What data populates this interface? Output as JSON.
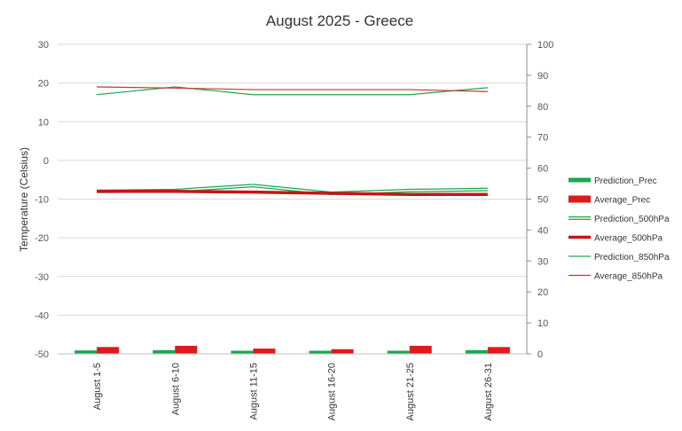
{
  "chart_data": {
    "type": "bar",
    "title": "August 2025 - Greece",
    "ylabel": "Temperature (Celsius)",
    "y2label": "",
    "categories": [
      "August 1-5",
      "August 6-10",
      "August 11-15",
      "August 16-20",
      "August 21-25",
      "August 26-31"
    ],
    "ylim": [
      -50,
      30
    ],
    "yticks": [
      -50,
      -40,
      -30,
      -20,
      -10,
      0,
      10,
      20,
      30
    ],
    "y2lim": [
      0,
      100
    ],
    "y2ticks": [
      0,
      10,
      20,
      30,
      40,
      50,
      60,
      70,
      80,
      90,
      100
    ],
    "grid": true,
    "legend_position": "right",
    "series": [
      {
        "name": "Prediction_Prec",
        "kind": "bar",
        "axis": "right",
        "color": "#1aa650",
        "values": [
          1.1,
          1.2,
          1.0,
          1.0,
          1.0,
          1.2
        ]
      },
      {
        "name": "Average_Prec",
        "kind": "bar",
        "axis": "right",
        "color": "#e01a1a",
        "values": [
          2.2,
          2.6,
          1.7,
          1.5,
          2.6,
          2.2
        ]
      },
      {
        "name": "Prediction_500hPa",
        "kind": "line",
        "style": "double",
        "axis": "left",
        "color": "#1aa650",
        "values": [
          -8.0,
          -7.8,
          -6.5,
          -8.5,
          -7.8,
          -7.5
        ]
      },
      {
        "name": "Average_500hPa",
        "kind": "line",
        "style": "thick",
        "axis": "left",
        "color": "#c81414",
        "values": [
          -8.0,
          -8.0,
          -8.2,
          -8.5,
          -8.8,
          -8.8
        ]
      },
      {
        "name": "Prediction_850hPa",
        "kind": "line",
        "style": "thin",
        "axis": "left",
        "color": "#1aa650",
        "values": [
          17.0,
          19.0,
          17.0,
          17.0,
          17.0,
          18.8
        ]
      },
      {
        "name": "Average_850hPa",
        "kind": "line",
        "style": "thin",
        "axis": "left",
        "color": "#c0392b",
        "values": [
          19.0,
          18.7,
          18.3,
          18.3,
          18.3,
          17.8
        ]
      }
    ]
  }
}
